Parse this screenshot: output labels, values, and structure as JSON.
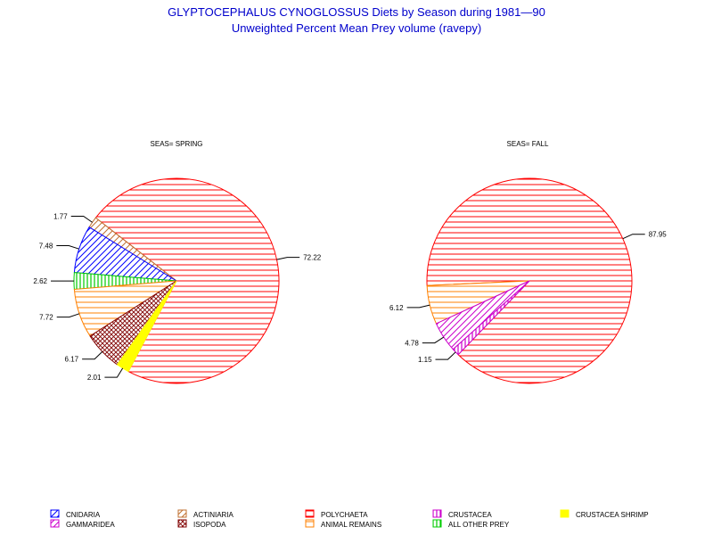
{
  "title": "GLYPTOCEPHALUS CYNOGLOSSUS Diets by Season during 1981—90",
  "subtitle": "Unweighted Percent Mean Prey volume (ravepy)",
  "colors": {
    "title": "#0000cc",
    "CNIDARIA": "#0000ff",
    "ACTINIARIA": "#c07030",
    "POLYCHAETA": "#ff0000",
    "CRUSTACEA": "#cc00cc",
    "CRUSTACEA SHRIMP": "#ffff00",
    "GAMMARIDEA": "#cc00cc",
    "ISOPODA": "#800000",
    "ANIMAL REMAINS": "#ff8000",
    "ALL OTHER PREY": "#00cc00"
  },
  "legend": [
    {
      "name": "CNIDARIA",
      "pattern": "diag",
      "color": "#0000ff"
    },
    {
      "name": "ACTINIARIA",
      "pattern": "diag",
      "color": "#c07030"
    },
    {
      "name": "POLYCHAETA",
      "pattern": "horiz",
      "color": "#ff0000"
    },
    {
      "name": "CRUSTACEA",
      "pattern": "vert",
      "color": "#cc00cc"
    },
    {
      "name": "CRUSTACEA SHRIMP",
      "pattern": "solid",
      "color": "#ffff00"
    },
    {
      "name": "GAMMARIDEA",
      "pattern": "diag",
      "color": "#cc00cc"
    },
    {
      "name": "ISOPODA",
      "pattern": "cross",
      "color": "#800000"
    },
    {
      "name": "ANIMAL REMAINS",
      "pattern": "horiz",
      "color": "#ff8000"
    },
    {
      "name": "ALL OTHER PREY",
      "pattern": "vert",
      "color": "#00cc00"
    }
  ],
  "chart_data": [
    {
      "type": "pie",
      "title": "SEAS= SPRING",
      "slices": [
        {
          "label": "POLYCHAETA",
          "value": 72.22
        },
        {
          "label": "ACTINIARIA",
          "value": 1.77
        },
        {
          "label": "CNIDARIA",
          "value": 7.48
        },
        {
          "label": "ALL OTHER PREY",
          "value": 2.62
        },
        {
          "label": "ANIMAL REMAINS",
          "value": 7.72
        },
        {
          "label": "ISOPODA",
          "value": 6.17
        },
        {
          "label": "CRUSTACEA SHRIMP",
          "value": 2.01
        }
      ]
    },
    {
      "type": "pie",
      "title": "SEAS= FALL",
      "slices": [
        {
          "label": "POLYCHAETA",
          "value": 87.95
        },
        {
          "label": "ANIMAL REMAINS",
          "value": 6.12
        },
        {
          "label": "GAMMARIDEA",
          "value": 4.78
        },
        {
          "label": "CRUSTACEA",
          "value": 1.15
        }
      ]
    }
  ]
}
